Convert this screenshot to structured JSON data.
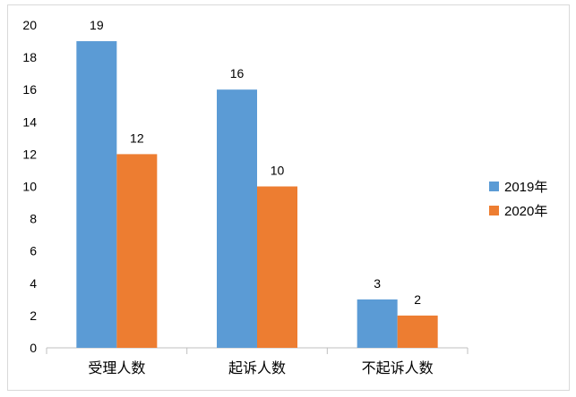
{
  "chart_data": {
    "type": "bar",
    "title": "",
    "xlabel": "",
    "ylabel": "",
    "categories": [
      "受理人数",
      "起诉人数",
      "不起诉人数"
    ],
    "series": [
      {
        "name": "2019年",
        "values": [
          19,
          16,
          3
        ],
        "color": "#5b9bd5"
      },
      {
        "name": "2020年",
        "values": [
          12,
          10,
          2
        ],
        "color": "#ed7d31"
      }
    ],
    "ylim": [
      0,
      20
    ],
    "yticks": [
      "0",
      "2",
      "4",
      "6",
      "8",
      "10",
      "12",
      "14",
      "16",
      "18",
      "20"
    ],
    "grid": false,
    "data_labels": true,
    "legend_position": "right"
  }
}
